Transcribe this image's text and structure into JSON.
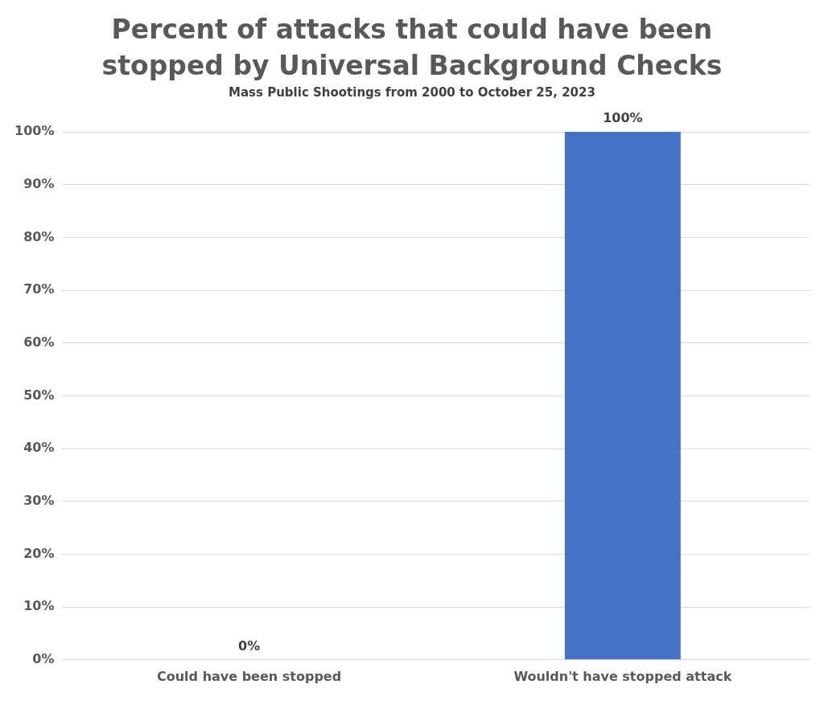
{
  "chart_data": {
    "type": "bar",
    "title": "Percent of attacks that could have been stopped by Universal Background Checks",
    "subtitle": "Mass Public Shootings from 2000 to October 25, 2023",
    "categories": [
      "Could have been stopped",
      "Wouldn't have stopped attack"
    ],
    "values": [
      0,
      100
    ],
    "color": "#4472c4",
    "value_labels": [
      "0%",
      "100%"
    ],
    "ylim": [
      0,
      100
    ],
    "yticks": [
      {
        "value": 0,
        "label": "0%"
      },
      {
        "value": 10,
        "label": "10%"
      },
      {
        "value": 20,
        "label": "20%"
      },
      {
        "value": 30,
        "label": "30%"
      },
      {
        "value": 40,
        "label": "40%"
      },
      {
        "value": 50,
        "label": "50%"
      },
      {
        "value": 60,
        "label": "60%"
      },
      {
        "value": 70,
        "label": "70%"
      },
      {
        "value": 80,
        "label": "80%"
      },
      {
        "value": 90,
        "label": "90%"
      },
      {
        "value": 100,
        "label": "100%"
      }
    ],
    "grid": "y",
    "legend": false
  }
}
